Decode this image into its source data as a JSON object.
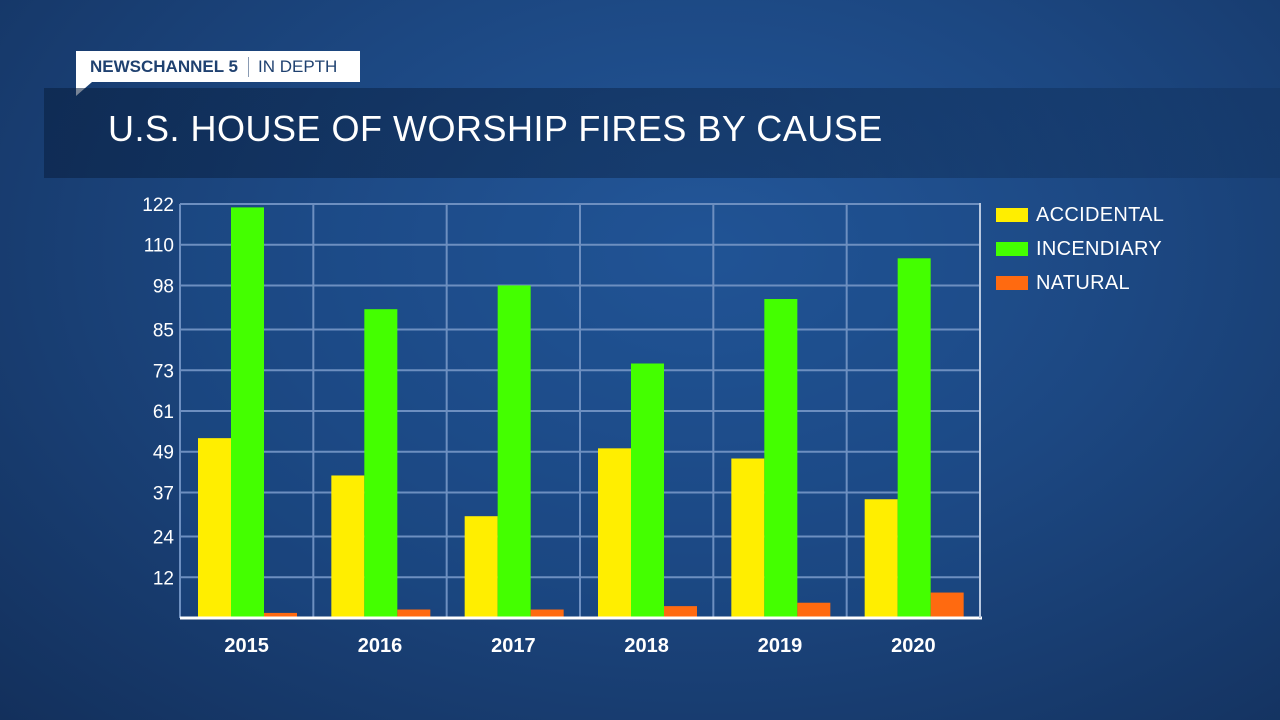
{
  "brand": {
    "station": "NEWSCHANNEL 5",
    "segment": "IN DEPTH"
  },
  "chart_data": {
    "type": "bar",
    "title": "U.S. HOUSE OF WORSHIP FIRES BY CAUSE",
    "categories": [
      "2015",
      "2016",
      "2017",
      "2018",
      "2019",
      "2020"
    ],
    "series": [
      {
        "name": "ACCIDENTAL",
        "color": "#ffee00",
        "values": [
          53,
          42,
          30,
          50,
          47,
          35
        ]
      },
      {
        "name": "INCENDIARY",
        "color": "#44ff00",
        "values": [
          121,
          91,
          98,
          75,
          94,
          106
        ]
      },
      {
        "name": "NATURAL",
        "color": "#ff6a10",
        "values": [
          1.5,
          2.5,
          2.5,
          3.5,
          4.5,
          7.5
        ]
      }
    ],
    "yticks": [
      "12",
      "24",
      "37",
      "49",
      "61",
      "73",
      "85",
      "98",
      "110",
      "122"
    ],
    "ylim": [
      0,
      122
    ],
    "grid": true,
    "legend_position": "right"
  }
}
